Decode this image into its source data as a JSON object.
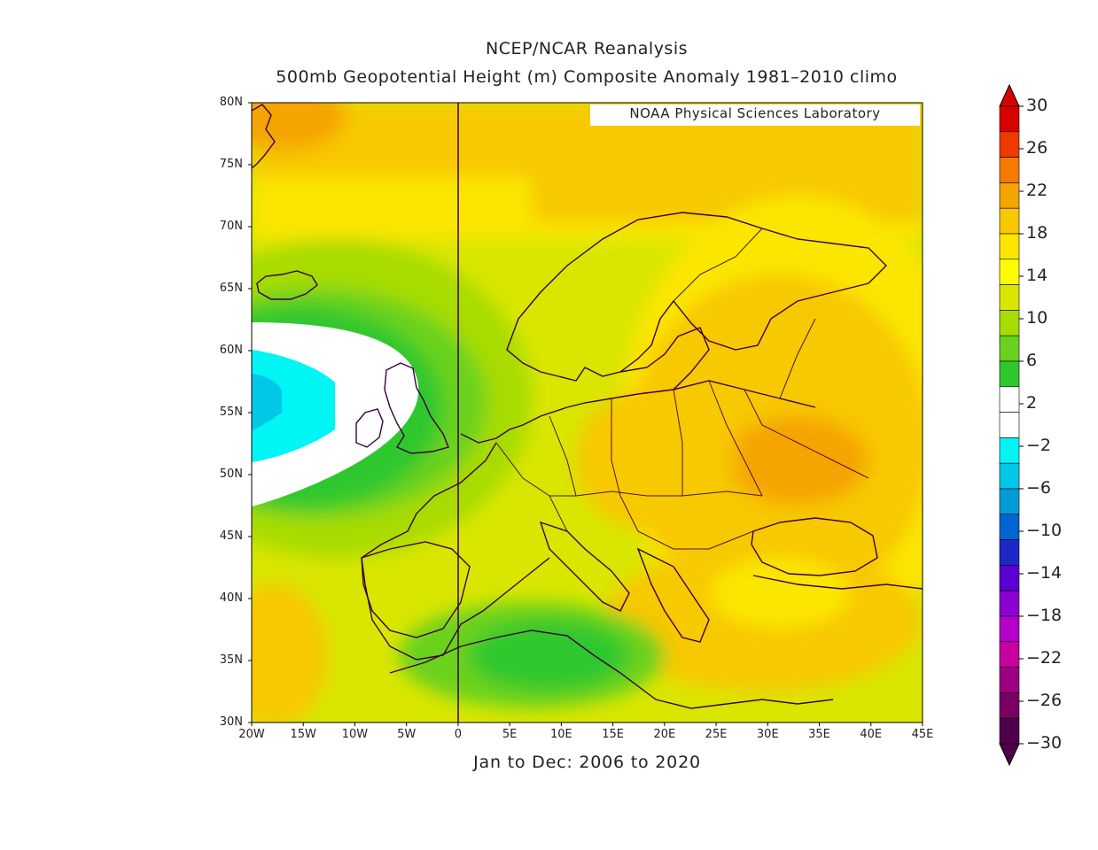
{
  "title": {
    "line1": "NCEP/NCAR Reanalysis",
    "line2": "500mb Geopotential Height (m) Composite Anomaly 1981–2010 climo"
  },
  "subtitle": "Jan to Dec: 2006 to 2020",
  "credit": "NOAA Physical Sciences Laboratory",
  "map": {
    "region": "Europe",
    "lat_range": [
      30,
      80
    ],
    "lon_range": [
      -20,
      45
    ],
    "lat_labels": [
      "80N",
      "75N",
      "70N",
      "65N",
      "60N",
      "55N",
      "50N",
      "45N",
      "40N",
      "35N",
      "30N"
    ],
    "lon_labels": [
      "20W",
      "15W",
      "10W",
      "5W",
      "0",
      "5E",
      "10E",
      "15E",
      "20E",
      "25E",
      "30E",
      "35E",
      "40E",
      "45E"
    ],
    "anomaly_features": [
      {
        "type": "low",
        "center_lon": -18,
        "center_lat": 56,
        "value": -4
      },
      {
        "type": "high",
        "center_lon": 33,
        "center_lat": 52,
        "value": 22
      },
      {
        "type": "ridge",
        "center_lon": 20,
        "center_lat": 72,
        "value": 18
      },
      {
        "type": "local-low",
        "center_lon": 10,
        "center_lat": 36,
        "value": 5
      }
    ]
  },
  "colorbar": {
    "labels": [
      "30",
      "26",
      "22",
      "18",
      "14",
      "10",
      "6",
      "2",
      "−2",
      "−6",
      "−10",
      "−14",
      "−18",
      "−22",
      "−26",
      "−30"
    ],
    "colors": [
      "#d80000",
      "#ee3a00",
      "#f57a00",
      "#f5a400",
      "#f8c800",
      "#fbe600",
      "#fdfd00",
      "#d9e600",
      "#a8dc00",
      "#6ad21e",
      "#2ec82e",
      "#ffffff",
      "#ffffff",
      "#00f5f5",
      "#00c8e6",
      "#009cd8",
      "#0064d2",
      "#1e28c8",
      "#5a00d2",
      "#8c00d2",
      "#b400c8",
      "#c800a0",
      "#9c0082",
      "#780064",
      "#50004b"
    ]
  }
}
